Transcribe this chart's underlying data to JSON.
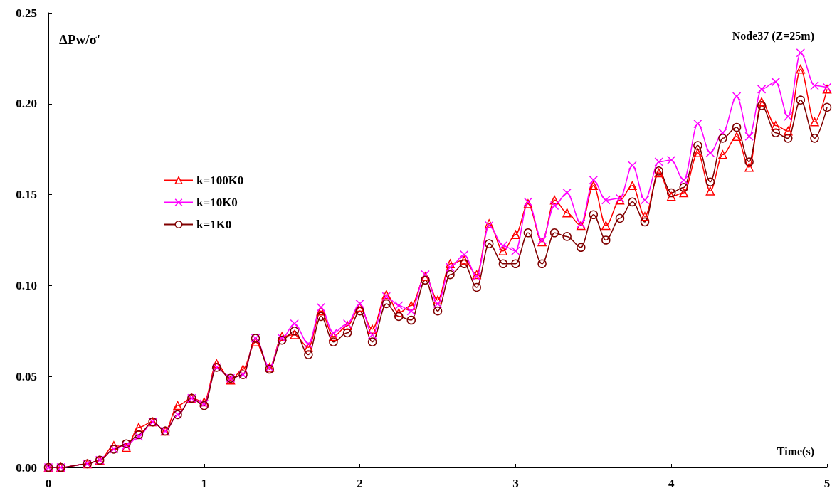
{
  "chart_data": {
    "type": "line",
    "title": "Node37 (Z=25m)",
    "xlabel": "Time(s)",
    "ylabel": "ΔPw/σ'",
    "x": [
      0,
      0.08,
      0.25,
      0.33,
      0.42,
      0.5,
      0.58,
      0.67,
      0.75,
      0.83,
      0.92,
      1,
      1.08,
      1.17,
      1.25,
      1.33,
      1.42,
      1.5,
      1.58,
      1.67,
      1.75,
      1.83,
      1.92,
      2,
      2.08,
      2.17,
      2.25,
      2.33,
      2.42,
      2.5,
      2.58,
      2.67,
      2.75,
      2.83,
      2.92,
      3,
      3.08,
      3.17,
      3.25,
      3.33,
      3.42,
      3.5,
      3.58,
      3.67,
      3.75,
      3.83,
      3.92,
      4,
      4.08,
      4.17,
      4.25,
      4.33,
      4.42,
      4.5,
      4.58,
      4.67,
      4.75,
      4.83,
      4.92,
      5
    ],
    "series": [
      {
        "name": "k=100K0",
        "color": "#ff0000",
        "marker": "triangle",
        "values": [
          0,
          0,
          0.002,
          0.004,
          0.012,
          0.011,
          0.022,
          0.025,
          0.02,
          0.034,
          0.038,
          0.036,
          0.057,
          0.048,
          0.054,
          0.069,
          0.055,
          0.072,
          0.073,
          0.066,
          0.086,
          0.072,
          0.078,
          0.088,
          0.076,
          0.095,
          0.085,
          0.089,
          0.105,
          0.092,
          0.112,
          0.114,
          0.106,
          0.134,
          0.119,
          0.128,
          0.145,
          0.124,
          0.147,
          0.14,
          0.133,
          0.155,
          0.133,
          0.147,
          0.155,
          0.138,
          0.162,
          0.149,
          0.151,
          0.173,
          0.152,
          0.172,
          0.182,
          0.165,
          0.201,
          0.188,
          0.185,
          0.219,
          0.19,
          0.208
        ]
      },
      {
        "name": "k=10K0",
        "color": "#ff00ff",
        "marker": "cross",
        "values": [
          0,
          0,
          0.002,
          0.004,
          0.01,
          0.012,
          0.017,
          0.025,
          0.02,
          0.029,
          0.038,
          0.035,
          0.055,
          0.049,
          0.051,
          0.071,
          0.055,
          0.071,
          0.079,
          0.068,
          0.088,
          0.074,
          0.079,
          0.09,
          0.073,
          0.094,
          0.089,
          0.086,
          0.106,
          0.09,
          0.11,
          0.117,
          0.105,
          0.133,
          0.122,
          0.119,
          0.146,
          0.125,
          0.144,
          0.151,
          0.134,
          0.158,
          0.147,
          0.148,
          0.166,
          0.147,
          0.168,
          0.169,
          0.158,
          0.189,
          0.173,
          0.184,
          0.204,
          0.182,
          0.208,
          0.212,
          0.193,
          0.228,
          0.21,
          0.209
        ]
      },
      {
        "name": "k=1K0",
        "color": "#800000",
        "marker": "circle",
        "values": [
          0,
          0,
          0.002,
          0.004,
          0.01,
          0.013,
          0.018,
          0.025,
          0.02,
          0.029,
          0.038,
          0.034,
          0.055,
          0.049,
          0.051,
          0.071,
          0.054,
          0.07,
          0.075,
          0.062,
          0.083,
          0.069,
          0.074,
          0.086,
          0.069,
          0.09,
          0.083,
          0.081,
          0.103,
          0.086,
          0.106,
          0.112,
          0.099,
          0.123,
          0.112,
          0.112,
          0.129,
          0.112,
          0.129,
          0.127,
          0.121,
          0.139,
          0.125,
          0.137,
          0.146,
          0.135,
          0.163,
          0.151,
          0.154,
          0.177,
          0.157,
          0.181,
          0.187,
          0.168,
          0.199,
          0.184,
          0.181,
          0.202,
          0.181,
          0.198
        ]
      }
    ],
    "xlim": [
      0,
      5
    ],
    "xticks": [
      0,
      1,
      2,
      3,
      4,
      5
    ],
    "ylim": [
      0,
      0.25
    ],
    "yticks": [
      {
        "value": 0,
        "label": "0.00"
      },
      {
        "value": 0.05,
        "label": "0.05"
      },
      {
        "value": 0.1,
        "label": "0.10"
      },
      {
        "value": 0.15,
        "label": "0.15"
      },
      {
        "value": 0.2,
        "label": "0.20"
      },
      {
        "value": 0.25,
        "label": "0.25"
      }
    ],
    "grid": false,
    "legend": "left",
    "line_style": "solid"
  }
}
